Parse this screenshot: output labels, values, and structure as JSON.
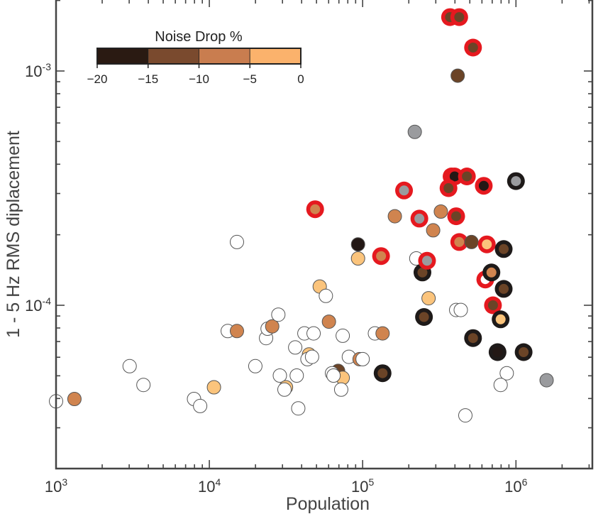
{
  "chart_data": {
    "type": "scatter",
    "title": "",
    "xlabel": "Population",
    "ylabel": "1 - 5 Hz RMS diplacement",
    "xscale": "log",
    "yscale": "log",
    "xlim": [
      1000,
      1800000
    ],
    "ylim": [
      2e-05,
      0.0019
    ],
    "x_ticks": [
      {
        "base": "10",
        "exp": "3"
      },
      {
        "base": "10",
        "exp": "4"
      },
      {
        "base": "10",
        "exp": "5"
      },
      {
        "base": "10",
        "exp": "6"
      }
    ],
    "y_ticks": [
      {
        "base": "10",
        "exp": "-3",
        "value": 0.001
      },
      {
        "base": "10",
        "exp": "-4",
        "value": 0.0001
      }
    ],
    "grid": false,
    "colorbar": {
      "title": "Noise Drop %",
      "placement": "top-left",
      "bins": [
        {
          "from": -20,
          "to": -15,
          "color": "#2a1a12"
        },
        {
          "from": -15,
          "to": -10,
          "color": "#7a4a2e"
        },
        {
          "from": -10,
          "to": -5,
          "color": "#c97d4f"
        },
        {
          "from": -5,
          "to": 0,
          "color": "#fbb26c"
        }
      ],
      "tick_labels": [
        "−20",
        "−15",
        "−10",
        "−5",
        "0"
      ]
    },
    "fill_colors": {
      "none": "#ffffff",
      "bin1": "#231815",
      "bin2": "#6b4427",
      "bin3": "#d0844f",
      "bin4": "#fbc47c",
      "gray": "#9a9b9e"
    },
    "ring_colors": {
      "red": "#e5191f",
      "black": "#1e1a19"
    },
    "series_note": "log10 population, log10 displacement, fill class, ring type",
    "points": [
      {
        "lx": 3.0,
        "ly": -4.41,
        "fill": "none",
        "ring": "none"
      },
      {
        "lx": 3.12,
        "ly": -4.4,
        "fill": "bin3",
        "ring": "none"
      },
      {
        "lx": 3.48,
        "ly": -4.26,
        "fill": "none",
        "ring": "none"
      },
      {
        "lx": 3.57,
        "ly": -4.34,
        "fill": "none",
        "ring": "none"
      },
      {
        "lx": 3.9,
        "ly": -4.4,
        "fill": "none",
        "ring": "none"
      },
      {
        "lx": 3.94,
        "ly": -4.43,
        "fill": "none",
        "ring": "none"
      },
      {
        "lx": 4.03,
        "ly": -4.35,
        "fill": "bin4",
        "ring": "none"
      },
      {
        "lx": 4.12,
        "ly": -4.11,
        "fill": "none",
        "ring": "none"
      },
      {
        "lx": 4.18,
        "ly": -3.73,
        "fill": "none",
        "ring": "none"
      },
      {
        "lx": 4.18,
        "ly": -4.11,
        "fill": "bin3",
        "ring": "none"
      },
      {
        "lx": 4.3,
        "ly": -4.26,
        "fill": "none",
        "ring": "none"
      },
      {
        "lx": 4.37,
        "ly": -4.14,
        "fill": "none",
        "ring": "none"
      },
      {
        "lx": 4.38,
        "ly": -4.1,
        "fill": "none",
        "ring": "none"
      },
      {
        "lx": 4.41,
        "ly": -4.09,
        "fill": "bin3",
        "ring": "none"
      },
      {
        "lx": 4.45,
        "ly": -4.04,
        "fill": "none",
        "ring": "none"
      },
      {
        "lx": 4.46,
        "ly": -4.3,
        "fill": "none",
        "ring": "none"
      },
      {
        "lx": 4.5,
        "ly": -4.35,
        "fill": "bin4",
        "ring": "none"
      },
      {
        "lx": 4.49,
        "ly": -4.36,
        "fill": "none",
        "ring": "none"
      },
      {
        "lx": 4.56,
        "ly": -4.18,
        "fill": "none",
        "ring": "none"
      },
      {
        "lx": 4.57,
        "ly": -4.3,
        "fill": "none",
        "ring": "none"
      },
      {
        "lx": 4.58,
        "ly": -4.44,
        "fill": "none",
        "ring": "none"
      },
      {
        "lx": 4.62,
        "ly": -4.12,
        "fill": "none",
        "ring": "none"
      },
      {
        "lx": 4.65,
        "ly": -4.21,
        "fill": "bin4",
        "ring": "none"
      },
      {
        "lx": 4.64,
        "ly": -4.23,
        "fill": "none",
        "ring": "none"
      },
      {
        "lx": 4.68,
        "ly": -4.12,
        "fill": "none",
        "ring": "none"
      },
      {
        "lx": 4.67,
        "ly": -4.22,
        "fill": "none",
        "ring": "none"
      },
      {
        "lx": 4.72,
        "ly": -3.92,
        "fill": "bin4",
        "ring": "none"
      },
      {
        "lx": 4.76,
        "ly": -3.96,
        "fill": "none",
        "ring": "none"
      },
      {
        "lx": 4.78,
        "ly": -4.07,
        "fill": "bin3",
        "ring": "none"
      },
      {
        "lx": 4.84,
        "ly": -4.28,
        "fill": "bin2",
        "ring": "none"
      },
      {
        "lx": 4.87,
        "ly": -4.31,
        "fill": "bin4",
        "ring": "none"
      },
      {
        "lx": 4.86,
        "ly": -4.36,
        "fill": "none",
        "ring": "none"
      },
      {
        "lx": 4.8,
        "ly": -4.29,
        "fill": "none",
        "ring": "none"
      },
      {
        "lx": 4.81,
        "ly": -4.3,
        "fill": "none",
        "ring": "none"
      },
      {
        "lx": 4.87,
        "ly": -4.13,
        "fill": "none",
        "ring": "none"
      },
      {
        "lx": 4.91,
        "ly": -4.22,
        "fill": "none",
        "ring": "none"
      },
      {
        "lx": 4.97,
        "ly": -3.74,
        "fill": "bin1",
        "ring": "none"
      },
      {
        "lx": 4.97,
        "ly": -3.8,
        "fill": "bin4",
        "ring": "none"
      },
      {
        "lx": 4.98,
        "ly": -4.23,
        "fill": "bin3",
        "ring": "none"
      },
      {
        "lx": 5.0,
        "ly": -4.23,
        "fill": "none",
        "ring": "none"
      },
      {
        "lx": 5.08,
        "ly": -4.12,
        "fill": "none",
        "ring": "none"
      },
      {
        "lx": 5.13,
        "ly": -4.12,
        "fill": "bin3",
        "ring": "none"
      },
      {
        "lx": 5.13,
        "ly": -4.29,
        "fill": "bin2",
        "ring": "black"
      },
      {
        "lx": 5.12,
        "ly": -3.79,
        "fill": "bin3",
        "ring": "red"
      },
      {
        "lx": 4.69,
        "ly": -3.59,
        "fill": "bin3",
        "ring": "red"
      },
      {
        "lx": 5.21,
        "ly": -3.62,
        "fill": "bin3",
        "ring": "none"
      },
      {
        "lx": 5.27,
        "ly": -3.51,
        "fill": "gray",
        "ring": "red"
      },
      {
        "lx": 5.34,
        "ly": -3.26,
        "fill": "gray",
        "ring": "none"
      },
      {
        "lx": 5.35,
        "ly": -3.8,
        "fill": "none",
        "ring": "none"
      },
      {
        "lx": 5.37,
        "ly": -3.63,
        "fill": "gray",
        "ring": "red"
      },
      {
        "lx": 5.39,
        "ly": -3.86,
        "fill": "bin2",
        "ring": "black"
      },
      {
        "lx": 5.42,
        "ly": -3.81,
        "fill": "gray",
        "ring": "red"
      },
      {
        "lx": 5.4,
        "ly": -4.05,
        "fill": "bin2",
        "ring": "black"
      },
      {
        "lx": 5.43,
        "ly": -3.97,
        "fill": "bin4",
        "ring": "none"
      },
      {
        "lx": 5.46,
        "ly": -3.68,
        "fill": "bin3",
        "ring": "none"
      },
      {
        "lx": 5.51,
        "ly": -3.6,
        "fill": "bin3",
        "ring": "none"
      },
      {
        "lx": 5.57,
        "ly": -2.77,
        "fill": "bin2",
        "ring": "red"
      },
      {
        "lx": 5.63,
        "ly": -2.77,
        "fill": "bin2",
        "ring": "red"
      },
      {
        "lx": 5.72,
        "ly": -2.9,
        "fill": "bin2",
        "ring": "red"
      },
      {
        "lx": 5.58,
        "ly": -3.45,
        "fill": "bin1",
        "ring": "red"
      },
      {
        "lx": 5.6,
        "ly": -3.45,
        "fill": "bin1",
        "ring": "red"
      },
      {
        "lx": 5.56,
        "ly": -3.5,
        "fill": "bin2",
        "ring": "red"
      },
      {
        "lx": 5.68,
        "ly": -3.45,
        "fill": "bin2",
        "ring": "red"
      },
      {
        "lx": 5.61,
        "ly": -3.62,
        "fill": "bin2",
        "ring": "red"
      },
      {
        "lx": 5.62,
        "ly": -3.02,
        "fill": "bin2",
        "ring": "none"
      },
      {
        "lx": 5.79,
        "ly": -3.49,
        "fill": "bin1",
        "ring": "red"
      },
      {
        "lx": 5.63,
        "ly": -3.73,
        "fill": "bin3",
        "ring": "red"
      },
      {
        "lx": 5.71,
        "ly": -3.73,
        "fill": "bin2",
        "ring": "none"
      },
      {
        "lx": 5.61,
        "ly": -4.02,
        "fill": "none",
        "ring": "none"
      },
      {
        "lx": 5.64,
        "ly": -4.02,
        "fill": "none",
        "ring": "none"
      },
      {
        "lx": 5.81,
        "ly": -3.74,
        "fill": "bin4",
        "ring": "red"
      },
      {
        "lx": 5.8,
        "ly": -3.89,
        "fill": "none",
        "ring": "red"
      },
      {
        "lx": 5.84,
        "ly": -3.86,
        "fill": "bin3",
        "ring": "black"
      },
      {
        "lx": 5.92,
        "ly": -3.76,
        "fill": "bin2",
        "ring": "black"
      },
      {
        "lx": 5.92,
        "ly": -3.93,
        "fill": "bin2",
        "ring": "black"
      },
      {
        "lx": 5.85,
        "ly": -4.0,
        "fill": "bin2",
        "ring": "red"
      },
      {
        "lx": 5.9,
        "ly": -4.06,
        "fill": "bin4",
        "ring": "black"
      },
      {
        "lx": 5.72,
        "ly": -4.14,
        "fill": "bin2",
        "ring": "black"
      },
      {
        "lx": 5.88,
        "ly": -4.2,
        "fill": "bin1",
        "ring": "black"
      },
      {
        "lx": 6.05,
        "ly": -4.2,
        "fill": "bin2",
        "ring": "black"
      },
      {
        "lx": 5.94,
        "ly": -4.29,
        "fill": "none",
        "ring": "none"
      },
      {
        "lx": 5.9,
        "ly": -4.34,
        "fill": "none",
        "ring": "none"
      },
      {
        "lx": 6.2,
        "ly": -4.32,
        "fill": "gray",
        "ring": "none"
      },
      {
        "lx": 6.0,
        "ly": -3.47,
        "fill": "gray",
        "ring": "black"
      },
      {
        "lx": 5.67,
        "ly": -4.47,
        "fill": "none",
        "ring": "none"
      }
    ]
  }
}
